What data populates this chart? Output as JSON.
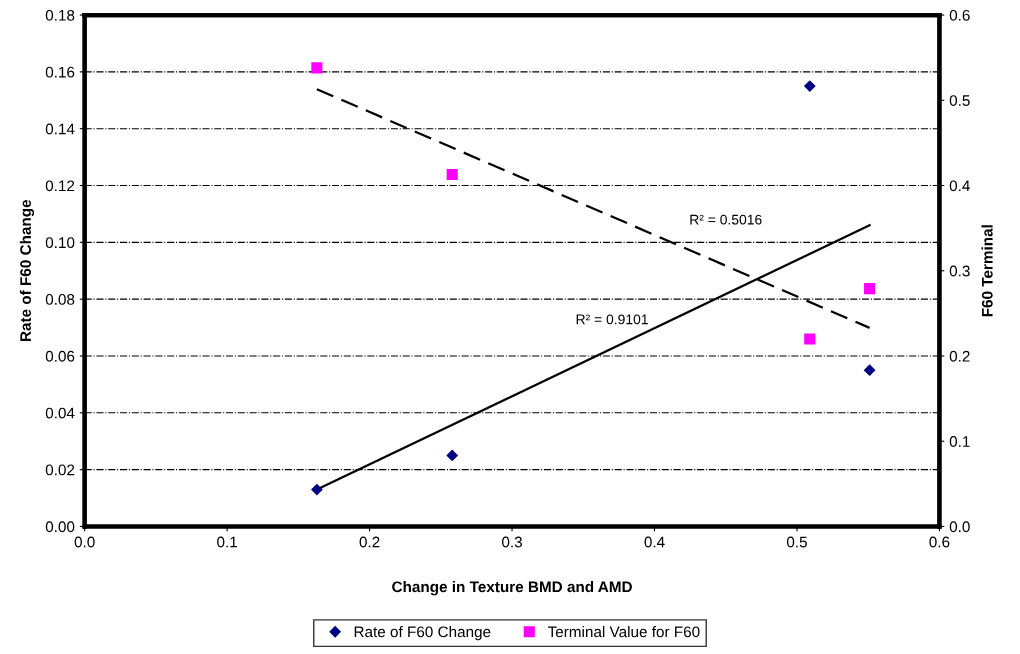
{
  "chart_data": {
    "type": "scatter",
    "xlabel": "Change in Texture BMD and AMD",
    "ylabel": "Rate of F60 Change",
    "y2label": "F60 Terminal",
    "xlim": [
      0.0,
      0.6
    ],
    "xticks": [
      {
        "value": 0.0,
        "label": "0.0"
      },
      0.1,
      0.2,
      0.3,
      0.4,
      0.5,
      0.6
    ],
    "ylim": [
      0.0,
      0.18
    ],
    "yticks": [
      {
        "value": 0.0,
        "label": "0.00"
      },
      {
        "value": 0.02,
        "label": "0.02"
      },
      {
        "value": 0.04,
        "label": "0.04"
      },
      {
        "value": 0.06,
        "label": "0.06"
      },
      {
        "value": 0.08,
        "label": "0.08"
      },
      {
        "value": 0.1,
        "label": "0.10"
      },
      {
        "value": 0.12,
        "label": "0.12"
      },
      {
        "value": 0.14,
        "label": "0.14"
      },
      {
        "value": 0.16,
        "label": "0.16"
      },
      {
        "value": 0.18,
        "label": "0.18"
      }
    ],
    "y2lim": [
      0.0,
      0.6
    ],
    "y2ticks": [
      {
        "value": 0.0,
        "label": "0.0"
      },
      0.1,
      0.2,
      0.3,
      0.4,
      0.5,
      0.6
    ],
    "grid": "y",
    "legend": "bottom",
    "series": [
      {
        "name": "Rate of F60 Change",
        "marker": "diamond",
        "color": "#000080",
        "x": [
          0.163,
          0.258,
          0.509,
          0.551
        ],
        "values": [
          0.013,
          0.025,
          0.155,
          0.055
        ]
      },
      {
        "name": "Terminal Value for F60",
        "marker": "square",
        "color": "#ff00ff",
        "axis": "y2",
        "x": [
          0.163,
          0.258,
          0.509,
          0.551
        ],
        "values": [
          0.538,
          0.413,
          0.22,
          0.279
        ]
      },
      {
        "type": "line",
        "line_style": "solid",
        "color": "#000000",
        "x": [
          0.163,
          0.551
        ],
        "values": [
          0.013,
          0.106
        ]
      },
      {
        "type": "line",
        "line_style": "dashed",
        "color": "#000000",
        "axis": "y2",
        "x": [
          0.163,
          0.551
        ],
        "values": [
          0.513,
          0.233
        ]
      }
    ],
    "annotations": [
      "R² = 0.5016",
      "R² = 0.9101"
    ]
  }
}
